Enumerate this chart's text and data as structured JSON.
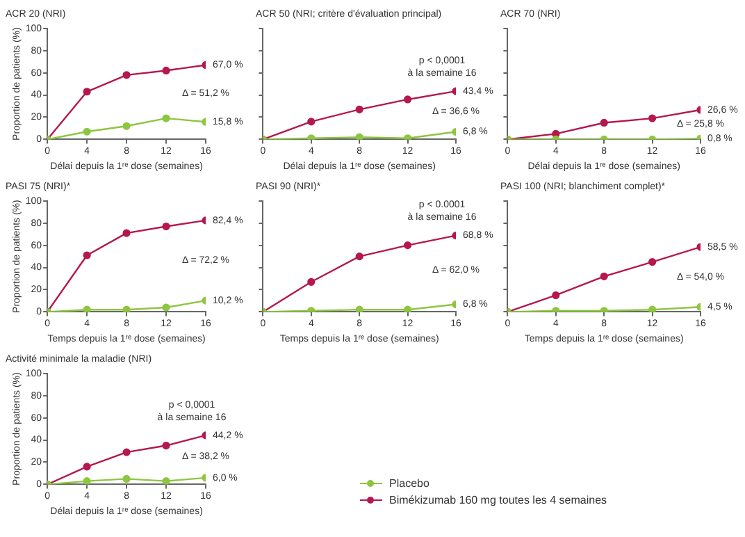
{
  "chart_data": [
    {
      "type": "line",
      "title": "ACR 20 (NRI)",
      "xlabel": "Délai depuis la 1ʳᵉ dose (semaines)",
      "ylabel": "Proportion de patients (%)",
      "x": [
        0,
        4,
        8,
        12,
        16
      ],
      "xlim": [
        0,
        16
      ],
      "xticks": [
        0,
        4,
        8,
        12,
        16
      ],
      "ylim": [
        0,
        100
      ],
      "yticks": [
        0,
        20,
        40,
        60,
        80,
        100
      ],
      "marker": "circle",
      "grid": false,
      "series": [
        {
          "color": "#8dc63f",
          "values": [
            0,
            7,
            12,
            19,
            15.8
          ],
          "value_labels": [
            null,
            null,
            null,
            null,
            "15,8 %"
          ]
        },
        {
          "color": "#b5174f",
          "values": [
            0,
            43,
            58,
            62,
            67.0
          ],
          "value_labels": [
            null,
            null,
            null,
            null,
            "67,0 %"
          ]
        }
      ],
      "annotations": [
        "Δ = 51,2 %"
      ]
    },
    {
      "type": "line",
      "title": "ACR 50 (NRI; critère d'évaluation principal)",
      "xlabel": "Délai depuis la 1ʳᵉ dose (semaines)",
      "x": [
        0,
        4,
        8,
        12,
        16
      ],
      "xlim": [
        0,
        16
      ],
      "xticks": [
        0,
        4,
        8,
        12,
        16
      ],
      "ylim": [
        0,
        100
      ],
      "yticks": [
        0,
        20,
        40,
        60,
        80,
        100
      ],
      "tick_labels": "x",
      "marker": "circle",
      "grid": false,
      "series": [
        {
          "color": "#8dc63f",
          "values": [
            0,
            1,
            2,
            1,
            6.8
          ],
          "value_labels": [
            null,
            null,
            null,
            null,
            "6,8 %"
          ]
        },
        {
          "color": "#b5174f",
          "values": [
            0,
            16,
            27,
            36,
            43.4
          ],
          "value_labels": [
            null,
            null,
            null,
            null,
            "43,4 %"
          ]
        }
      ],
      "annotations": [
        "Δ = 36,6 %",
        "p < 0,0001",
        "à la semaine 16"
      ]
    },
    {
      "type": "line",
      "title": "ACR 70 (NRI)",
      "xlabel": "Délai depuis la 1ʳᵉ dose (semaines)",
      "x": [
        0,
        4,
        8,
        12,
        16
      ],
      "xlim": [
        0,
        16
      ],
      "xticks": [
        0,
        4,
        8,
        12,
        16
      ],
      "ylim": [
        0,
        100
      ],
      "yticks": [
        0,
        20,
        40,
        60,
        80,
        100
      ],
      "tick_labels": "x",
      "marker": "circle",
      "grid": false,
      "series": [
        {
          "color": "#8dc63f",
          "values": [
            0,
            0,
            0,
            0,
            0.8
          ],
          "value_labels": [
            null,
            null,
            null,
            null,
            "0,8 %"
          ]
        },
        {
          "color": "#b5174f",
          "values": [
            0,
            5,
            15,
            19,
            26.6
          ],
          "value_labels": [
            null,
            null,
            null,
            null,
            "26,6 %"
          ]
        }
      ],
      "annotations": [
        "Δ = 25,8 %"
      ]
    },
    {
      "type": "line",
      "title": "PASI 75 (NRI)*",
      "xlabel": "Temps depuis la 1ʳᵉ dose (semaines)",
      "ylabel": "Proportion de patients (%)",
      "x": [
        0,
        4,
        8,
        12,
        16
      ],
      "xlim": [
        0,
        16
      ],
      "xticks": [
        0,
        4,
        8,
        12,
        16
      ],
      "ylim": [
        0,
        100
      ],
      "yticks": [
        0,
        20,
        40,
        60,
        80,
        100
      ],
      "marker": "circle",
      "grid": false,
      "series": [
        {
          "color": "#8dc63f",
          "values": [
            0,
            2,
            2,
            4,
            10.2
          ],
          "value_labels": [
            null,
            null,
            null,
            null,
            "10,2 %"
          ]
        },
        {
          "color": "#b5174f",
          "values": [
            0,
            51,
            71,
            77,
            82.4
          ],
          "value_labels": [
            null,
            null,
            null,
            null,
            "82,4 %"
          ]
        }
      ],
      "annotations": [
        "Δ = 72,2 %"
      ]
    },
    {
      "type": "line",
      "title": "PASI 90 (NRI)*",
      "xlabel": "Temps depuis la 1ʳᵉ dose (semaines)",
      "x": [
        0,
        4,
        8,
        12,
        16
      ],
      "xlim": [
        0,
        16
      ],
      "xticks": [
        0,
        4,
        8,
        12,
        16
      ],
      "ylim": [
        0,
        100
      ],
      "yticks": [
        0,
        20,
        40,
        60,
        80,
        100
      ],
      "tick_labels": "x",
      "marker": "circle",
      "grid": false,
      "series": [
        {
          "color": "#8dc63f",
          "values": [
            0,
            1,
            2,
            2,
            6.8
          ],
          "value_labels": [
            null,
            null,
            null,
            null,
            "6,8 %"
          ]
        },
        {
          "color": "#b5174f",
          "values": [
            0,
            27,
            50,
            60,
            68.8
          ],
          "value_labels": [
            null,
            null,
            null,
            null,
            "68,8 %"
          ]
        }
      ],
      "annotations": [
        "Δ = 62,0 %",
        "p < 0.0001",
        "à la semaine 16"
      ]
    },
    {
      "type": "line",
      "title": "PASI 100 (NRI; blanchiment complet)*",
      "xlabel": "Temps depuis la 1ʳᵉ dose (semaines)",
      "x": [
        0,
        4,
        8,
        12,
        16
      ],
      "xlim": [
        0,
        16
      ],
      "xticks": [
        0,
        4,
        8,
        12,
        16
      ],
      "ylim": [
        0,
        100
      ],
      "yticks": [
        0,
        20,
        40,
        60,
        80,
        100
      ],
      "tick_labels": "x",
      "marker": "circle",
      "grid": false,
      "series": [
        {
          "color": "#8dc63f",
          "values": [
            0,
            1,
            1,
            2,
            4.5
          ],
          "value_labels": [
            null,
            null,
            null,
            null,
            "4,5 %"
          ]
        },
        {
          "color": "#b5174f",
          "values": [
            0,
            15,
            32,
            45,
            58.5
          ],
          "value_labels": [
            null,
            null,
            null,
            null,
            "58,5 %"
          ]
        }
      ],
      "annotations": [
        "Δ = 54,0 %"
      ]
    },
    {
      "type": "line",
      "title": "Activité minimale la maladie (NRI)",
      "xlabel": "Délai depuis la 1ʳᵉ dose (semaines)",
      "ylabel": "Proportion de patients (%)",
      "x": [
        0,
        4,
        8,
        12,
        16
      ],
      "xlim": [
        0,
        16
      ],
      "xticks": [
        0,
        4,
        8,
        12,
        16
      ],
      "ylim": [
        0,
        100
      ],
      "yticks": [
        0,
        20,
        40,
        60,
        80,
        100
      ],
      "marker": "circle",
      "grid": false,
      "legend": "right",
      "series": [
        {
          "name": "Placebo",
          "color": "#8dc63f",
          "values": [
            0,
            3,
            5,
            3,
            6.0
          ],
          "value_labels": [
            null,
            null,
            null,
            null,
            "6,0 %"
          ]
        },
        {
          "name": "Bimékizumab 160 mg toutes les 4 semaines",
          "color": "#b5174f",
          "values": [
            0,
            16,
            29,
            35,
            44.2
          ],
          "value_labels": [
            null,
            null,
            null,
            null,
            "44,2 %"
          ]
        }
      ],
      "annotations": [
        "Δ = 38,2 %",
        "p < 0,0001",
        "à la semaine 16"
      ]
    }
  ]
}
